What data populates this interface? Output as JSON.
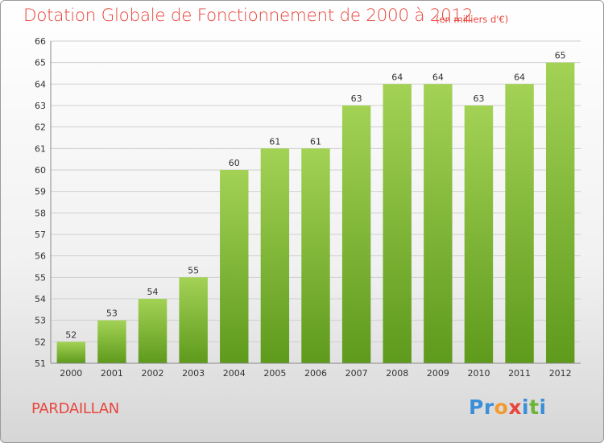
{
  "header": {
    "title": "Dotation Globale de Fonctionnement de 2000 à 2012",
    "subtitle": "(en milliers d'€)"
  },
  "footer": {
    "commune": "PARDAILLAN",
    "logo": {
      "letters": [
        "P",
        "r",
        "o",
        "x",
        "i",
        "t",
        "i"
      ],
      "text": "Proxiti"
    }
  },
  "colors": {
    "title": "#e8453c",
    "bar_top": "#a3d255",
    "bar_bottom": "#5e9a1c",
    "logo_letters": [
      "#3a8fd8",
      "#3a8fd8",
      "#f29a2e",
      "#e8453c",
      "#3a8fd8",
      "#6ab43a",
      "#3a8fd8"
    ]
  },
  "chart_data": {
    "type": "bar",
    "title": "Dotation Globale de Fonctionnement de 2000 à 2012",
    "subtitle": "(en milliers d'€)",
    "xlabel": "",
    "ylabel": "",
    "categories": [
      "2000",
      "2001",
      "2002",
      "2003",
      "2004",
      "2005",
      "2006",
      "2007",
      "2008",
      "2009",
      "2010",
      "2011",
      "2012"
    ],
    "values": [
      52,
      53,
      54,
      55,
      60,
      61,
      61,
      63,
      64,
      64,
      63,
      64,
      65
    ],
    "ylim": [
      51,
      66
    ],
    "yticks": [
      51,
      52,
      53,
      54,
      55,
      56,
      57,
      58,
      59,
      60,
      61,
      62,
      63,
      64,
      65,
      66
    ],
    "grid": true,
    "data_labels": true
  }
}
